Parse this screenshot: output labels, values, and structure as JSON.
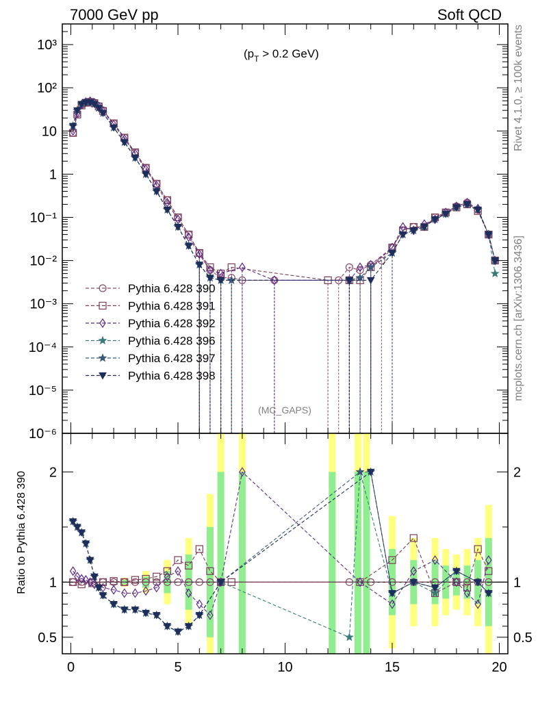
{
  "header": {
    "left": "7000 GeV pp",
    "right": "Soft QCD"
  },
  "side": {
    "top": "Rivet 4.1.0, ≥ 100k events",
    "bottom": "mcplots.cern.ch [arXiv:1306.3436]"
  },
  "main_plot": {
    "cut_label_prefix": "(p",
    "cut_label_sub": "T",
    "cut_label_suffix": " > 0.2 GeV)",
    "note": "(MC_GAPS)"
  },
  "colors": {
    "s390": "#8b4a6b",
    "s391": "#7a3b55",
    "s392": "#5c2a8a",
    "s396": "#3a7a78",
    "s397": "#3b5878",
    "s398": "#1e2d5a",
    "band_green": "#90ee90",
    "band_yellow": "#ffff80"
  },
  "chart_data": [
    {
      "type": "line",
      "title": "",
      "xlabel": "",
      "ylabel": "",
      "xlim": [
        -0.4,
        20.4
      ],
      "ylim": [
        1e-06,
        3000
      ],
      "yscale": "log",
      "ytick_labels": [
        "10⁻⁶",
        "10⁻⁵",
        "10⁻⁴",
        "10⁻³",
        "10⁻²",
        "10⁻¹",
        "1",
        "10",
        "10²",
        "10³"
      ],
      "ytick_values": [
        1e-06,
        1e-05,
        0.0001,
        0.001,
        0.01,
        0.1,
        1,
        10,
        100,
        1000
      ],
      "xtick_labels": [
        "0",
        "5",
        "10",
        "15",
        "20"
      ],
      "xtick_values": [
        0,
        5,
        10,
        15,
        20
      ],
      "legend_position": "left",
      "series": [
        {
          "name": "Pythia 6.428 390",
          "key": "s390",
          "marker": "circle",
          "x": [
            0.1,
            0.3,
            0.5,
            0.7,
            0.9,
            1.1,
            1.3,
            1.5,
            2,
            2.5,
            3,
            3.5,
            4,
            4.5,
            5,
            5.5,
            6,
            6.5,
            7,
            7.5,
            8,
            9.5,
            12.5,
            13,
            13.5,
            14,
            14.5,
            15,
            15.5,
            16,
            16.5,
            17,
            17.5,
            18,
            18.5,
            19,
            19.5,
            19.8
          ],
          "y": [
            9,
            25,
            40,
            46,
            48,
            45,
            38,
            30,
            15,
            7,
            3.2,
            1.4,
            0.6,
            0.25,
            0.1,
            0.04,
            0.015,
            0.006,
            0.004,
            0.004,
            0.0035,
            0.0035,
            0.0035,
            0.007,
            0.006,
            0.008,
            0.01,
            0.02,
            0.05,
            0.06,
            0.06,
            0.1,
            0.13,
            0.18,
            0.22,
            0.15,
            0.04,
            0.01
          ]
        },
        {
          "name": "Pythia 6.428 391",
          "key": "s391",
          "marker": "square",
          "x": [
            0.1,
            0.3,
            0.5,
            0.7,
            0.9,
            1.1,
            1.3,
            1.5,
            2,
            2.5,
            3,
            3.5,
            4,
            4.5,
            5,
            5.5,
            6,
            6.5,
            7,
            7.5,
            12,
            13,
            13.5,
            14,
            15,
            15.5,
            16,
            16.5,
            17,
            17.5,
            18,
            18.5,
            19,
            19.5,
            19.8
          ],
          "y": [
            9,
            24,
            39,
            45,
            47,
            44,
            37,
            29,
            15,
            7,
            3.2,
            1.4,
            0.6,
            0.25,
            0.1,
            0.04,
            0.015,
            0.007,
            0.005,
            0.007,
            0.0035,
            0.0035,
            0.0035,
            0.007,
            0.02,
            0.05,
            0.06,
            0.06,
            0.1,
            0.13,
            0.17,
            0.2,
            0.14,
            0.04,
            0.01
          ]
        },
        {
          "name": "Pythia 6.428 392",
          "key": "s392",
          "marker": "diamond",
          "x": [
            0.1,
            0.3,
            0.5,
            0.7,
            0.9,
            1.1,
            1.3,
            1.5,
            2,
            2.5,
            3,
            3.5,
            4,
            4.5,
            5,
            5.5,
            6,
            6.5,
            7,
            8,
            9.5,
            13,
            13.5,
            14,
            15,
            15.5,
            16,
            16.5,
            17,
            17.5,
            18,
            18.5,
            19,
            19.5,
            19.8
          ],
          "y": [
            10,
            26,
            41,
            47,
            49,
            45,
            37,
            29,
            14,
            6.5,
            3,
            1.3,
            0.55,
            0.22,
            0.09,
            0.035,
            0.014,
            0.006,
            0.005,
            0.007,
            0.0035,
            0.0035,
            0.007,
            0.008,
            0.02,
            0.06,
            0.05,
            0.07,
            0.09,
            0.13,
            0.18,
            0.22,
            0.16,
            0.04,
            0.01
          ]
        },
        {
          "name": "Pythia 6.428 396",
          "key": "s396",
          "marker": "star",
          "x": [
            0.1,
            0.3,
            0.5,
            0.7,
            0.9,
            1.1,
            1.3,
            1.5,
            2,
            2.5,
            3,
            3.5,
            4,
            4.5,
            5,
            5.5,
            6,
            6.5,
            7,
            7.5,
            13,
            13.5,
            14,
            15,
            15.5,
            16,
            16.5,
            17,
            17.5,
            18,
            18.5,
            19,
            19.5,
            19.8
          ],
          "y": [
            13,
            30,
            42,
            46,
            46,
            42,
            34,
            26,
            12,
            5.5,
            2.4,
            1,
            0.4,
            0.15,
            0.06,
            0.022,
            0.008,
            0.004,
            0.0035,
            0.0035,
            0.0035,
            0.004,
            0.007,
            0.015,
            0.04,
            0.05,
            0.06,
            0.09,
            0.12,
            0.17,
            0.2,
            0.15,
            0.04,
            0.005
          ]
        },
        {
          "name": "Pythia 6.428 397",
          "key": "s397",
          "marker": "star",
          "x": [
            0.1,
            0.3,
            0.5,
            0.7,
            0.9,
            1.1,
            1.3,
            1.5,
            2,
            2.5,
            3,
            3.5,
            4,
            4.5,
            5,
            5.5,
            6,
            6.5,
            7,
            7.5,
            13,
            13.5,
            14,
            15,
            15.5,
            16,
            16.5,
            17,
            17.5,
            18,
            18.5,
            19,
            19.5,
            19.8
          ],
          "y": [
            13,
            30,
            42,
            46,
            46,
            42,
            34,
            26,
            12,
            5.5,
            2.4,
            1,
            0.4,
            0.15,
            0.06,
            0.022,
            0.008,
            0.004,
            0.0035,
            0.0035,
            0.0035,
            0.004,
            0.007,
            0.015,
            0.04,
            0.05,
            0.06,
            0.09,
            0.12,
            0.17,
            0.2,
            0.15,
            0.04,
            0.01
          ]
        },
        {
          "name": "Pythia 6.428 398",
          "key": "s398",
          "marker": "tri",
          "x": [
            0.1,
            0.3,
            0.5,
            0.7,
            0.9,
            1.1,
            1.3,
            1.5,
            2,
            2.5,
            3,
            3.5,
            4,
            4.5,
            5,
            5.5,
            6,
            6.5,
            7,
            13,
            14,
            15,
            15.5,
            16,
            16.5,
            17,
            17.5,
            18,
            18.5,
            19,
            19.5,
            19.8
          ],
          "y": [
            13,
            30,
            42,
            46,
            46,
            42,
            34,
            26,
            12,
            5.5,
            2.4,
            1,
            0.4,
            0.15,
            0.06,
            0.022,
            0.008,
            0.004,
            0.0035,
            0.0035,
            0.0035,
            0.015,
            0.04,
            0.05,
            0.06,
            0.09,
            0.12,
            0.17,
            0.2,
            0.15,
            0.04,
            0.01
          ]
        }
      ]
    },
    {
      "type": "line",
      "title": "",
      "xlabel": "",
      "ylabel": "Ratio to Pythia 6.428 390",
      "xlim": [
        -0.4,
        20.4
      ],
      "ylim": [
        0.35,
        2.35
      ],
      "ytick_labels": [
        "0.5",
        "1",
        "2"
      ],
      "ytick_values": [
        0.5,
        1,
        2
      ],
      "xtick_labels": [
        "0",
        "5",
        "10",
        "15",
        "20"
      ],
      "xtick_values": [
        0,
        5,
        10,
        15,
        20
      ],
      "series": [
        {
          "name": "Pythia 6.428 390",
          "key": "s390",
          "marker": "circle",
          "x": [
            0.1,
            0.5,
            1,
            1.5,
            2,
            2.5,
            3,
            3.5,
            4,
            4.5,
            5,
            5.5,
            6,
            6.5,
            7,
            13,
            14,
            15,
            16,
            17,
            18,
            18.5,
            19,
            19.5
          ],
          "y": [
            1,
            1,
            1,
            1,
            1,
            1,
            1,
            1,
            1,
            1,
            1,
            1,
            1,
            1,
            1,
            1,
            1,
            1,
            1,
            1,
            1,
            1,
            1,
            1
          ]
        },
        {
          "name": "Pythia 6.428 391",
          "key": "s391",
          "marker": "square",
          "x": [
            0.1,
            0.5,
            1,
            1.5,
            2,
            2.5,
            3,
            3.5,
            4,
            4.5,
            5,
            5.5,
            6,
            6.5,
            7,
            7.5,
            13.5,
            15,
            16,
            17,
            18,
            18.5,
            19,
            19.5
          ],
          "y": [
            1.0,
            0.98,
            0.99,
            1.0,
            1.01,
            1.0,
            1.02,
            1.03,
            1.05,
            1.1,
            1.2,
            1.15,
            1.3,
            1.1,
            1.0,
            1.0,
            1.0,
            1.2,
            1.4,
            0.9,
            1.0,
            0.95,
            1.3,
            1.1
          ]
        },
        {
          "name": "Pythia 6.428 392",
          "key": "s392",
          "marker": "diamond",
          "x": [
            0.1,
            0.3,
            0.5,
            0.7,
            0.9,
            1.1,
            1.5,
            2,
            2.5,
            3,
            3.5,
            4,
            4.5,
            5,
            5.5,
            6,
            6.5,
            7,
            8,
            13.5,
            15,
            16,
            17,
            18,
            18.5,
            19,
            19.5
          ],
          "y": [
            1.1,
            1.05,
            1.03,
            1.02,
            1.0,
            0.98,
            0.95,
            0.93,
            0.9,
            0.9,
            0.92,
            0.95,
            1.05,
            1.1,
            0.9,
            0.8,
            0.7,
            1.0,
            2.0,
            1.0,
            0.8,
            1.1,
            1.2,
            1.0,
            0.9,
            0.8,
            1.2
          ]
        },
        {
          "name": "Pythia 6.428 396",
          "key": "s396",
          "marker": "star",
          "x": [
            0.1,
            0.3,
            0.5,
            0.7,
            0.9,
            1.1,
            1.3,
            1.5,
            2,
            2.5,
            3,
            3.5,
            4,
            4.5,
            5,
            5.5,
            6,
            7,
            13,
            13.5,
            15,
            16,
            17,
            18,
            19,
            19.5
          ],
          "y": [
            1.55,
            1.5,
            1.45,
            1.35,
            1.2,
            1.05,
            0.95,
            0.88,
            0.8,
            0.75,
            0.75,
            0.72,
            0.7,
            0.6,
            0.55,
            0.6,
            0.7,
            1.0,
            0.5,
            2.0,
            0.9,
            1.0,
            0.9,
            1.1,
            1.0,
            0.9
          ]
        },
        {
          "name": "Pythia 6.428 397",
          "key": "s397",
          "marker": "star",
          "x": [
            0.1,
            0.3,
            0.5,
            0.7,
            0.9,
            1.1,
            1.3,
            1.5,
            2,
            2.5,
            3,
            3.5,
            4,
            4.5,
            5,
            5.5,
            6,
            7,
            13.5,
            14,
            15,
            16,
            17,
            18,
            19,
            19.5
          ],
          "y": [
            1.55,
            1.5,
            1.45,
            1.35,
            1.2,
            1.05,
            0.95,
            0.88,
            0.8,
            0.75,
            0.75,
            0.72,
            0.7,
            0.6,
            0.55,
            0.6,
            0.7,
            1.0,
            2.0,
            2.0,
            0.9,
            1.0,
            0.95,
            1.1,
            1.0,
            0.9
          ]
        },
        {
          "name": "Pythia 6.428 398",
          "key": "s398",
          "marker": "tri",
          "x": [
            0.1,
            0.3,
            0.5,
            0.7,
            0.9,
            1.1,
            1.3,
            1.5,
            2,
            2.5,
            3,
            3.5,
            4,
            4.5,
            5,
            5.5,
            6,
            7,
            14,
            15,
            16,
            17,
            18,
            19,
            19.5
          ],
          "y": [
            1.55,
            1.5,
            1.45,
            1.35,
            1.2,
            1.05,
            0.95,
            0.88,
            0.8,
            0.75,
            0.75,
            0.72,
            0.7,
            0.6,
            0.55,
            0.6,
            0.7,
            1.0,
            2.0,
            0.9,
            1.0,
            0.95,
            1.1,
            1.0,
            0.9
          ]
        }
      ],
      "bands": {
        "x": [
          2.5,
          3.5,
          4.5,
          5.5,
          6.5,
          7,
          8,
          12.2,
          13.4,
          13.8,
          15,
          16,
          17,
          17.5,
          18,
          18.5,
          19,
          19.5
        ],
        "green_half": [
          0.02,
          0.05,
          0.1,
          0.25,
          0.5,
          1.5,
          1.5,
          1.5,
          1.5,
          1.2,
          0.3,
          0.2,
          0.2,
          0.15,
          0.12,
          0.15,
          0.2,
          0.4
        ],
        "yellow_half": [
          0.04,
          0.1,
          0.2,
          0.4,
          0.8,
          1.6,
          1.6,
          1.6,
          1.6,
          1.4,
          0.6,
          0.4,
          0.4,
          0.3,
          0.25,
          0.3,
          0.4,
          0.7
        ]
      }
    }
  ]
}
